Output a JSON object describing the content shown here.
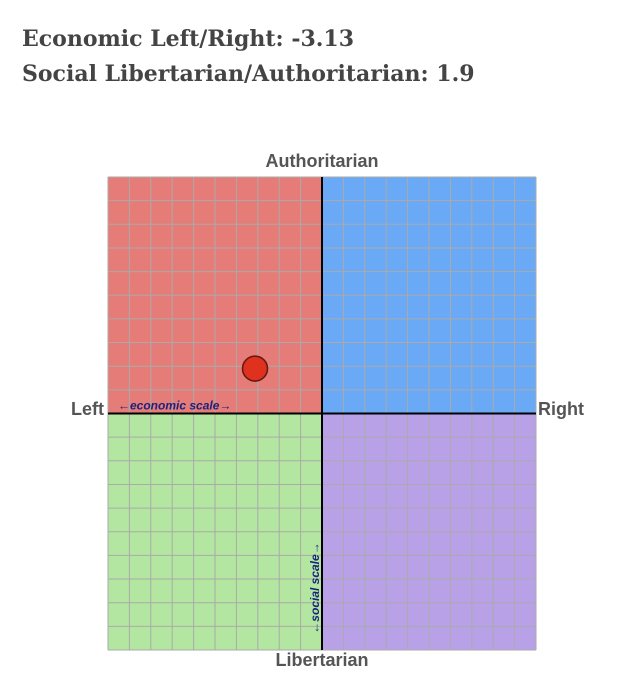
{
  "chart_data": {
    "type": "scatter",
    "x_label": "Economic Left/Right:",
    "y_label": "Social Libertarian/Authoritarian:",
    "top_label": "Authoritarian",
    "bottom_label": "Libertarian",
    "left_label": "Left",
    "right_label": "Right",
    "x_scale_label": "←economic scale→",
    "y_scale_label": "←social scale→",
    "x": [
      -3.13
    ],
    "values": [
      1.9
    ],
    "color": "#e0301e",
    "quadrant_colors": {
      "top_left": "#e57c77",
      "top_right": "#6aa9f5",
      "bottom_left": "#b3e6a0",
      "bottom_right": "#b9a1e8"
    },
    "xlim": [
      -10,
      10
    ],
    "ylim": [
      -10,
      10
    ],
    "xticks": [
      -10,
      -9,
      -8,
      -7,
      -6,
      -5,
      -4,
      -3,
      -2,
      -1,
      0,
      1,
      2,
      3,
      4,
      5,
      6,
      7,
      8,
      9,
      10
    ],
    "yticks": [
      -10,
      -9,
      -8,
      -7,
      -6,
      -5,
      -4,
      -3,
      -2,
      -1,
      0,
      1,
      2,
      3,
      4,
      5,
      6,
      7,
      8,
      9,
      10
    ],
    "grid": true
  }
}
